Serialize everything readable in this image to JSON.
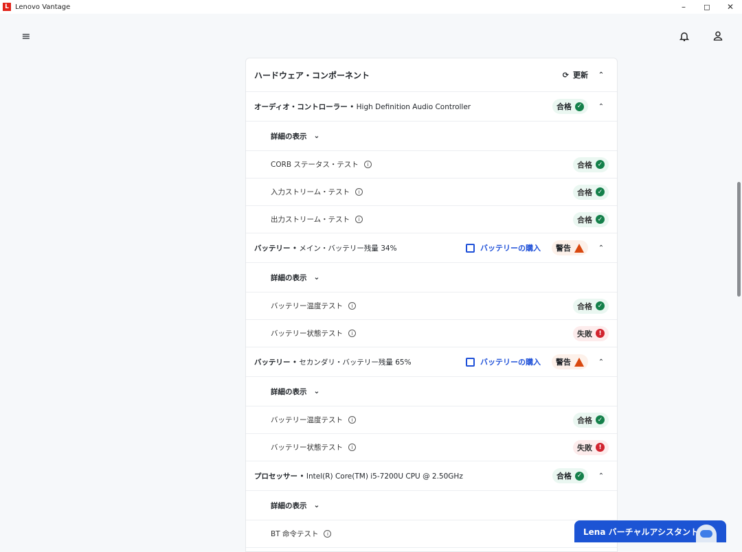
{
  "window": {
    "title": "Lenovo Vantage",
    "logo_letter": "L"
  },
  "card": {
    "title": "ハードウェア・コンポーネント",
    "refresh_label": "更新"
  },
  "components": [
    {
      "name": "オーディオ・コントローラー",
      "detail": "High Definition Audio Controller",
      "status": "pass",
      "status_label": "合格",
      "buy_label": "",
      "details_label": "詳細の表示",
      "tests": [
        {
          "label": "CORB ステータス・テスト",
          "status": "pass",
          "status_label": "合格"
        },
        {
          "label": "入力ストリーム・テスト",
          "status": "pass",
          "status_label": "合格"
        },
        {
          "label": "出力ストリーム・テスト",
          "status": "pass",
          "status_label": "合格"
        }
      ]
    },
    {
      "name": "バッテリー",
      "detail": "メイン・バッテリー残量 34%",
      "status": "warn",
      "status_label": "警告",
      "buy_label": "バッテリーの購入",
      "details_label": "詳細の表示",
      "tests": [
        {
          "label": "バッテリー温度テスト",
          "status": "pass",
          "status_label": "合格"
        },
        {
          "label": "バッテリー状態テスト",
          "status": "fail",
          "status_label": "失敗"
        }
      ]
    },
    {
      "name": "バッテリー",
      "detail": "セカンダリ・バッテリー残量 65%",
      "status": "warn",
      "status_label": "警告",
      "buy_label": "バッテリーの購入",
      "details_label": "詳細の表示",
      "tests": [
        {
          "label": "バッテリー温度テスト",
          "status": "pass",
          "status_label": "合格"
        },
        {
          "label": "バッテリー状態テスト",
          "status": "fail",
          "status_label": "失敗"
        }
      ]
    },
    {
      "name": "プロセッサー",
      "detail": "Intel(R) Core(TM) i5-7200U CPU @ 2.50GHz",
      "status": "pass",
      "status_label": "合格",
      "buy_label": "",
      "details_label": "詳細の表示",
      "tests": [
        {
          "label": "BT 命令テスト",
          "status": "",
          "status_label": ""
        }
      ]
    }
  ],
  "assistant": {
    "label": "Lena バーチャルアシスタント"
  },
  "colors": {
    "pass": "#14804a",
    "warn": "#d9480f",
    "fail": "#d1242f",
    "accent": "#1c54d4"
  }
}
